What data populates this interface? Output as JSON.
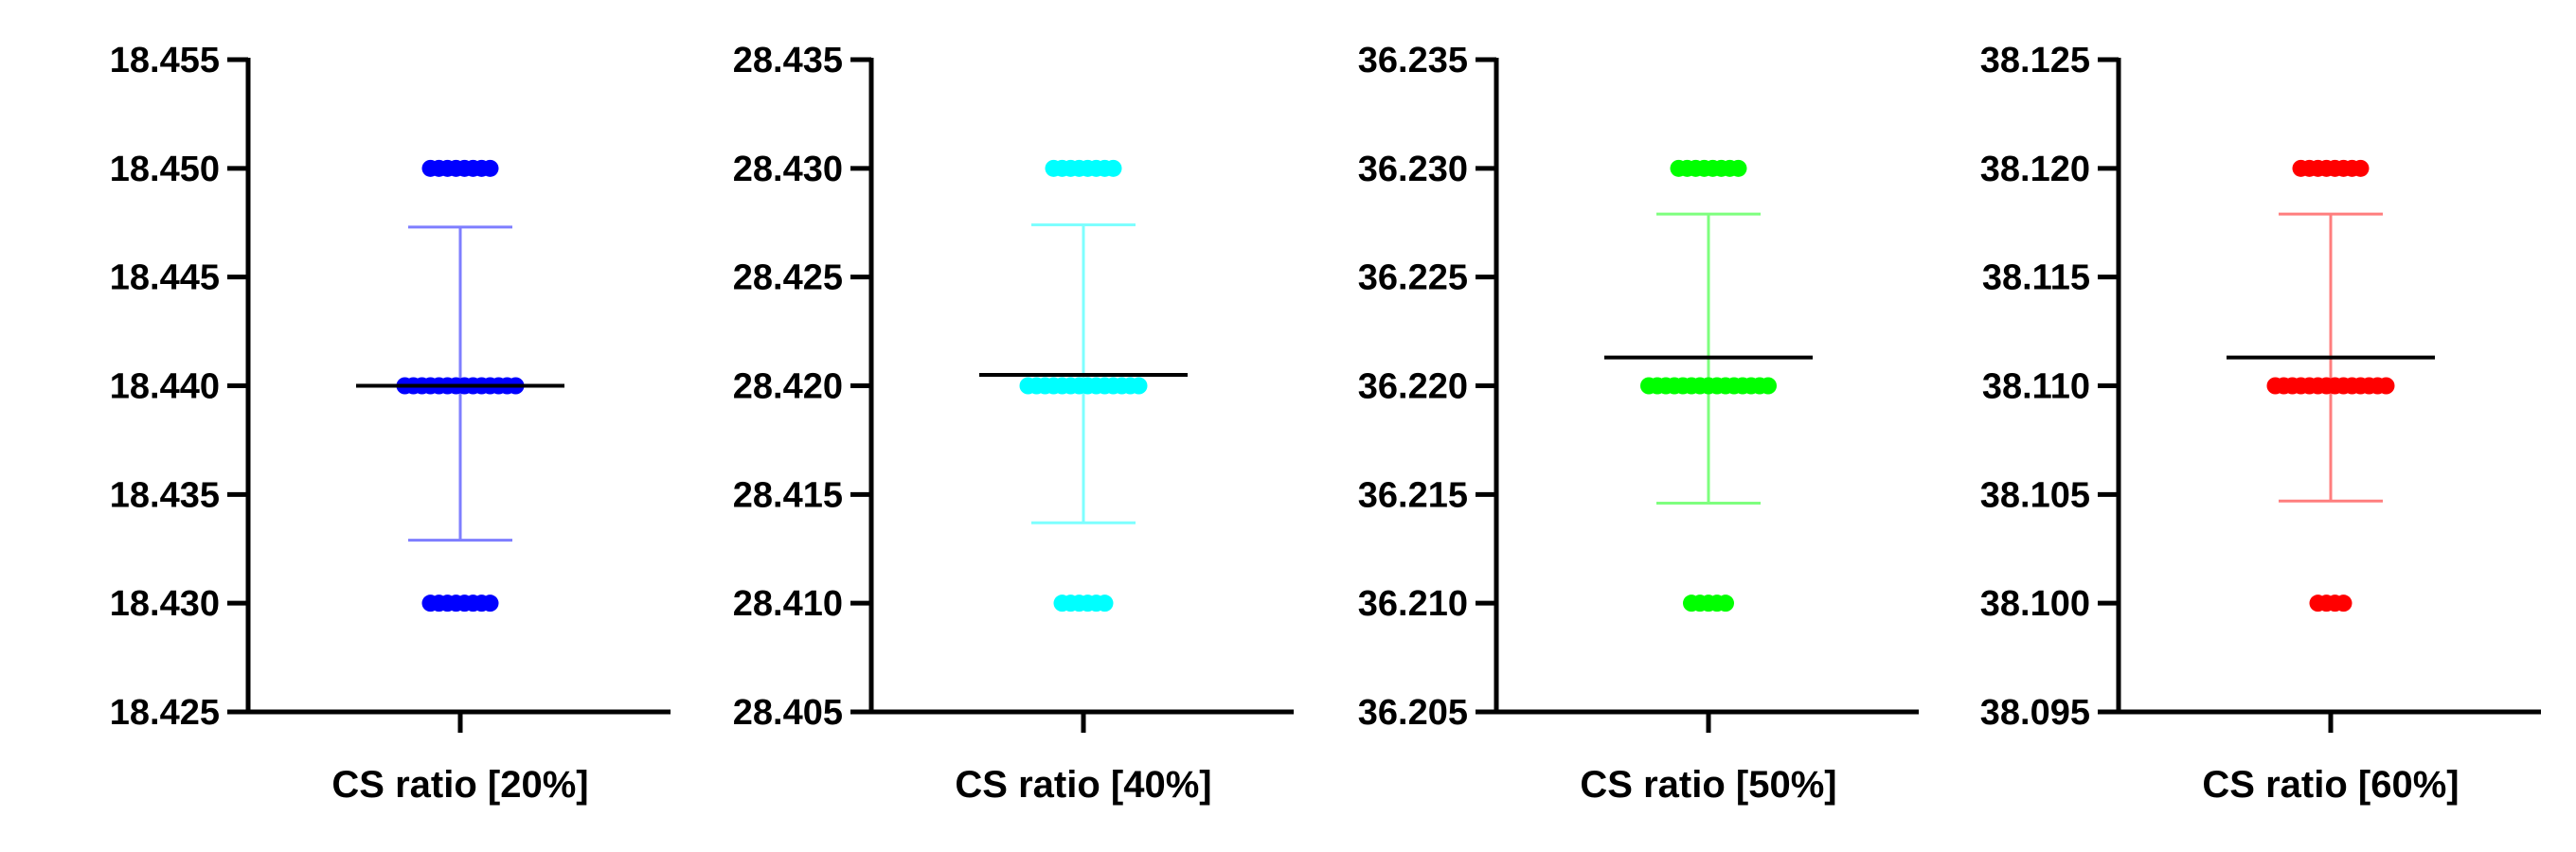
{
  "chart_data": [
    {
      "type": "scatter",
      "categories": [
        "CS ratio [20%]"
      ],
      "color": "#0000ff",
      "ylim": [
        18.425,
        18.455
      ],
      "yticks": [
        "18.455",
        "18.450",
        "18.445",
        "18.440",
        "18.435",
        "18.430",
        "18.425"
      ],
      "points": [
        {
          "y": 18.45,
          "count": 8
        },
        {
          "y": 18.44,
          "count": 14
        },
        {
          "y": 18.43,
          "count": 8
        }
      ],
      "mean": 18.44,
      "error_upper": 18.4473,
      "error_lower": 18.4329,
      "grid": false
    },
    {
      "type": "scatter",
      "categories": [
        "CS ratio [40%]"
      ],
      "color": "#00ffff",
      "ylim": [
        28.405,
        28.435
      ],
      "yticks": [
        "28.435",
        "28.430",
        "28.425",
        "28.420",
        "28.415",
        "28.410",
        "28.405"
      ],
      "points": [
        {
          "y": 28.43,
          "count": 8
        },
        {
          "y": 28.42,
          "count": 14
        },
        {
          "y": 28.41,
          "count": 6
        }
      ],
      "mean": 28.4205,
      "error_upper": 28.4274,
      "error_lower": 28.4137,
      "grid": false
    },
    {
      "type": "scatter",
      "categories": [
        "CS ratio [50%]"
      ],
      "color": "#00ff00",
      "ylim": [
        36.205,
        36.235
      ],
      "yticks": [
        "36.235",
        "36.230",
        "36.225",
        "36.220",
        "36.215",
        "36.210",
        "36.205"
      ],
      "points": [
        {
          "y": 36.23,
          "count": 8
        },
        {
          "y": 36.22,
          "count": 15
        },
        {
          "y": 36.21,
          "count": 5
        }
      ],
      "mean": 36.2213,
      "error_upper": 36.2279,
      "error_lower": 36.2146,
      "grid": false
    },
    {
      "type": "scatter",
      "categories": [
        "CS ratio [60%]"
      ],
      "color": "#ff0000",
      "ylim": [
        38.095,
        38.125
      ],
      "yticks": [
        "38.125",
        "38.120",
        "38.115",
        "38.110",
        "38.105",
        "38.100",
        "38.095"
      ],
      "points": [
        {
          "y": 38.12,
          "count": 8
        },
        {
          "y": 38.11,
          "count": 14
        },
        {
          "y": 38.1,
          "count": 4
        }
      ],
      "mean": 38.1113,
      "error_upper": 38.1179,
      "error_lower": 38.1047,
      "grid": false
    }
  ]
}
